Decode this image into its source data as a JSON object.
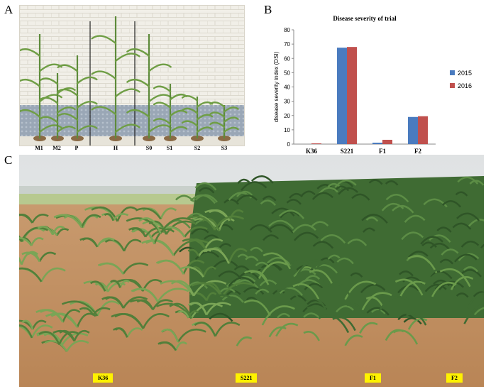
{
  "panel_a": {
    "letter": "A",
    "labels": [
      "M1",
      "M2",
      "P",
      "H",
      "S0",
      "S1",
      "S2",
      "S3"
    ]
  },
  "panel_b": {
    "letter": "B",
    "colors": {
      "2015": "#4a7bbf",
      "2016": "#c0504d"
    }
  },
  "panel_c": {
    "letter": "C",
    "signs": [
      "K36",
      "S221",
      "F1",
      "F2"
    ]
  },
  "chart_data": {
    "type": "bar",
    "title": "Disease severity of trial",
    "ylabel": "disease severity index (DSI)",
    "xlabel": "",
    "ylim": [
      0,
      80
    ],
    "yticks": [
      "0",
      "10",
      "20",
      "30",
      "40",
      "50",
      "60",
      "70",
      "80"
    ],
    "categories": [
      "K36",
      "S221",
      "F1",
      "F2"
    ],
    "series": [
      {
        "name": "2015",
        "values": [
          0,
          67.5,
          1,
          19
        ]
      },
      {
        "name": "2016",
        "values": [
          0.5,
          68,
          3,
          19.5
        ]
      }
    ],
    "legend_position": "right",
    "grid": false
  }
}
